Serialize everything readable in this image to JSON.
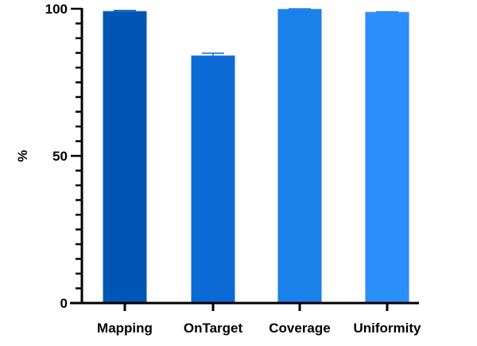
{
  "chart_data": {
    "type": "bar",
    "title": "",
    "xlabel": "",
    "ylabel": "%",
    "ylim": [
      0,
      100
    ],
    "yticks": [
      0,
      50,
      100
    ],
    "minor_tick_step": 5,
    "grid": false,
    "categories": [
      "Mapping",
      "OnTarget",
      "Coverage",
      "Uniformity"
    ],
    "values": [
      99.2,
      84.1,
      99.9,
      98.9
    ],
    "error_upper": [
      99.4,
      84.9,
      100,
      99.0
    ],
    "colors": [
      "#0056b4",
      "#0b6ad5",
      "#1a80ea",
      "#2a8ffa"
    ]
  }
}
